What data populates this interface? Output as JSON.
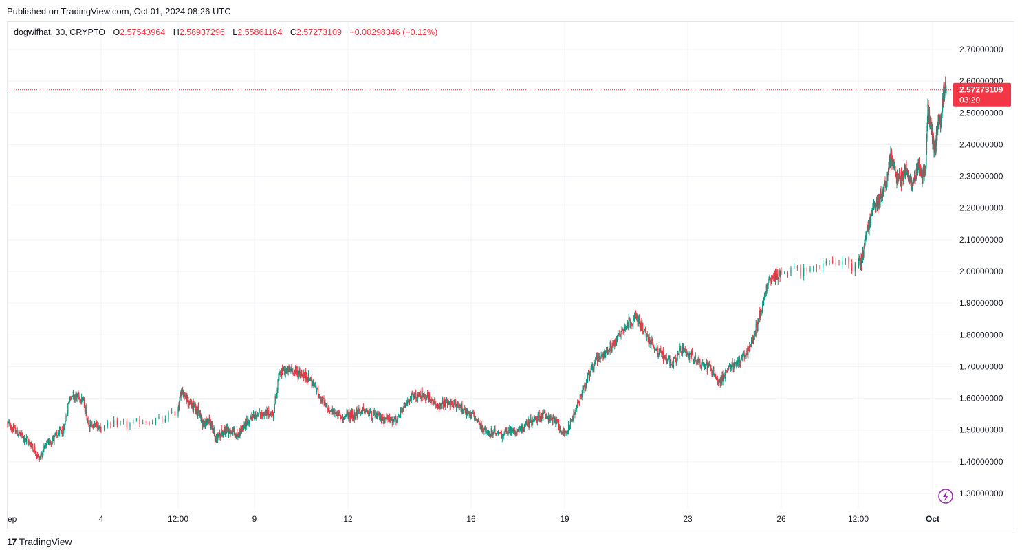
{
  "header": {
    "published": "Published on TradingView.com, Oct 01, 2024 08:26 UTC"
  },
  "legend": {
    "symbol": "dogwifhat, 30, CRYPTO",
    "o_label": "O",
    "o_value": "2.57543964",
    "h_label": "H",
    "h_value": "2.58937296",
    "l_label": "L",
    "l_value": "2.55861164",
    "c_label": "C",
    "c_value": "2.57273109",
    "change": "−0.00298346 (−0.12%)"
  },
  "price_tag": {
    "price": "2.57273109",
    "countdown": "03:20"
  },
  "footer": {
    "brand_mark": "17",
    "brand_name": "TradingView"
  },
  "colors": {
    "up": "#089981",
    "down": "#f23645",
    "grid": "#f0f3fa",
    "price_line": "#f23645",
    "replay_icon": "#9c27b0"
  },
  "chart_data": {
    "type": "candlestick",
    "interval": "30",
    "ylim": [
      1.25,
      2.75
    ],
    "y_ticks": [
      "2.70000000",
      "2.60000000",
      "2.50000000",
      "2.40000000",
      "2.30000000",
      "2.20000000",
      "2.10000000",
      "2.00000000",
      "1.90000000",
      "1.80000000",
      "1.70000000",
      "1.60000000",
      "1.50000000",
      "1.40000000",
      "1.30000000"
    ],
    "y_tick_values": [
      2.7,
      2.6,
      2.5,
      2.4,
      2.3,
      2.2,
      2.1,
      2.0,
      1.9,
      1.8,
      1.7,
      1.6,
      1.5,
      1.4,
      1.3
    ],
    "x_ticks": [
      {
        "label": "ep",
        "t": 0.0
      },
      {
        "label": "4",
        "t": 3.0
      },
      {
        "label": "12:00",
        "t": 3.5
      },
      {
        "label": "9",
        "t": 8.0
      },
      {
        "label": "12",
        "t": 11.0
      },
      {
        "label": "16",
        "t": 15.0
      },
      {
        "label": "19",
        "t": 18.0
      },
      {
        "label": "23",
        "t": 22.0
      },
      {
        "label": "26",
        "t": 25.0
      },
      {
        "label": "12:00",
        "t": 25.5
      },
      {
        "label": "Oct",
        "t": 30.0
      }
    ],
    "x_axis_note": "t = days offset from Sep 1; last candle at t≈30.3",
    "last_price": 2.57273109,
    "trend": [
      [
        0.0,
        1.52
      ],
      [
        0.8,
        1.45
      ],
      [
        1.0,
        1.41
      ],
      [
        1.3,
        1.46
      ],
      [
        1.8,
        1.5
      ],
      [
        2.0,
        1.61
      ],
      [
        2.4,
        1.6
      ],
      [
        2.6,
        1.52
      ],
      [
        3.0,
        1.51
      ],
      [
        3.4,
        1.53
      ],
      [
        3.7,
        1.63
      ],
      [
        4.1,
        1.59
      ],
      [
        4.7,
        1.56
      ],
      [
        5.0,
        1.52
      ],
      [
        5.4,
        1.53
      ],
      [
        5.7,
        1.47
      ],
      [
        6.0,
        1.49
      ],
      [
        6.5,
        1.5
      ],
      [
        7.0,
        1.48
      ],
      [
        7.5,
        1.52
      ],
      [
        8.0,
        1.55
      ],
      [
        8.6,
        1.55
      ],
      [
        8.8,
        1.68
      ],
      [
        9.2,
        1.69
      ],
      [
        9.8,
        1.66
      ],
      [
        10.3,
        1.57
      ],
      [
        10.8,
        1.54
      ],
      [
        11.5,
        1.56
      ],
      [
        12.0,
        1.54
      ],
      [
        12.6,
        1.53
      ],
      [
        13.0,
        1.6
      ],
      [
        13.5,
        1.61
      ],
      [
        13.8,
        1.58
      ],
      [
        14.5,
        1.58
      ],
      [
        15.0,
        1.55
      ],
      [
        15.5,
        1.49
      ],
      [
        16.0,
        1.49
      ],
      [
        16.5,
        1.5
      ],
      [
        17.0,
        1.53
      ],
      [
        17.3,
        1.55
      ],
      [
        17.8,
        1.52
      ],
      [
        18.0,
        1.48
      ],
      [
        18.3,
        1.55
      ],
      [
        18.6,
        1.63
      ],
      [
        19.0,
        1.72
      ],
      [
        19.5,
        1.76
      ],
      [
        19.9,
        1.82
      ],
      [
        20.3,
        1.86
      ],
      [
        20.7,
        1.79
      ],
      [
        21.0,
        1.75
      ],
      [
        21.5,
        1.71
      ],
      [
        21.8,
        1.75
      ],
      [
        22.3,
        1.72
      ],
      [
        22.8,
        1.69
      ],
      [
        23.0,
        1.65
      ],
      [
        23.4,
        1.7
      ],
      [
        23.8,
        1.73
      ],
      [
        24.0,
        1.76
      ],
      [
        24.3,
        1.86
      ],
      [
        24.6,
        1.97
      ],
      [
        25.0,
        2.0
      ],
      [
        25.3,
        2.02
      ],
      [
        25.7,
        2.03
      ],
      [
        26.0,
        2.12
      ],
      [
        26.4,
        2.2
      ],
      [
        26.8,
        2.23
      ],
      [
        27.2,
        2.28
      ],
      [
        27.5,
        2.37
      ],
      [
        27.8,
        2.3
      ],
      [
        28.1,
        2.29
      ],
      [
        28.4,
        2.32
      ],
      [
        28.8,
        2.28
      ],
      [
        29.1,
        2.33
      ],
      [
        29.4,
        2.3
      ],
      [
        29.6,
        2.33
      ],
      [
        29.7,
        2.52
      ],
      [
        30.0,
        2.42
      ],
      [
        30.3,
        2.38
      ],
      [
        30.6,
        2.48
      ],
      [
        30.9,
        2.47
      ],
      [
        31.2,
        2.58
      ],
      [
        31.45,
        2.57
      ]
    ]
  }
}
